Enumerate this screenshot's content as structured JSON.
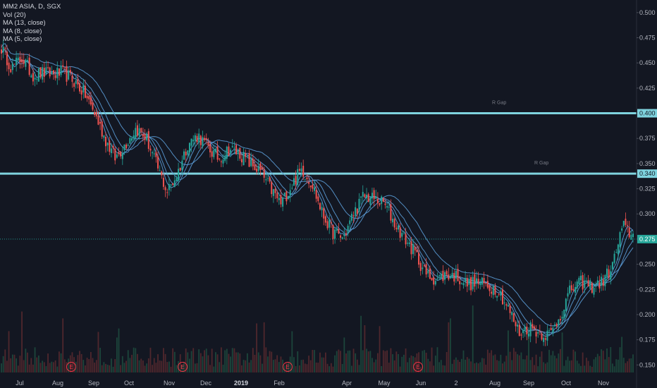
{
  "legend": {
    "symbol": "MM2 ASIA, D, SGX",
    "vol": "Vol (20)",
    "ma13": "MA (13, close)",
    "ma8": "MA (8, close)",
    "ma5": "MA (5, close)"
  },
  "colors": {
    "background": "#131722",
    "up": "#26a69a",
    "down": "#ef5350",
    "hline": "#7fd3de",
    "ma": "#5b9bd5",
    "earnings": "#f23645",
    "last_price_line": "#26a69a"
  },
  "chart_data": {
    "type": "candlestick",
    "price_axis": {
      "ticks": [
        "0.500",
        "0.475",
        "0.450",
        "0.425",
        "0.400",
        "0.375",
        "0.350",
        "0.325",
        "0.300",
        "0.275",
        "0.250",
        "0.225",
        "0.200",
        "0.175",
        "0.150"
      ],
      "range": [
        0.1425,
        0.5125
      ]
    },
    "time_axis": {
      "labels": [
        "Jul",
        "Aug",
        "Sep",
        "Oct",
        "Nov",
        "Dec",
        "2019",
        "Feb",
        "Apr",
        "May",
        "Jun",
        "2",
        "Aug",
        "Sep",
        "Oct",
        "Nov"
      ],
      "bold": [
        "2019"
      ]
    },
    "horizontal_lines": [
      {
        "price": 0.4,
        "label": "0.400",
        "note": "R Gap"
      },
      {
        "price": 0.34,
        "label": "0.340",
        "note": "R Gap"
      }
    ],
    "last_price": {
      "price": 0.275,
      "label": "0.275"
    },
    "earnings_markers": [
      "E",
      "E",
      "E",
      "E"
    ],
    "price_keypoints": [
      [
        0.465,
        0.445,
        0.455,
        0.438,
        0.44,
        0.439,
        0.44,
        0.432,
        0.42,
        0.4,
        0.375,
        0.355,
        0.37,
        0.385,
        0.375,
        0.348,
        0.322,
        0.34,
        0.37,
        0.378,
        0.365,
        0.355,
        0.365,
        0.36,
        0.35,
        0.342,
        0.325,
        0.31,
        0.328,
        0.345,
        0.33,
        0.3,
        0.282,
        0.276,
        0.3,
        0.318,
        0.315,
        0.31,
        0.29,
        0.275,
        0.26,
        0.24,
        0.235,
        0.24,
        0.238,
        0.23,
        0.232,
        0.228,
        0.225,
        0.205,
        0.182,
        0.188,
        0.182,
        0.18,
        0.2,
        0.225,
        0.232,
        0.228,
        0.232,
        0.248,
        0.288,
        0.278
      ]
    ]
  }
}
